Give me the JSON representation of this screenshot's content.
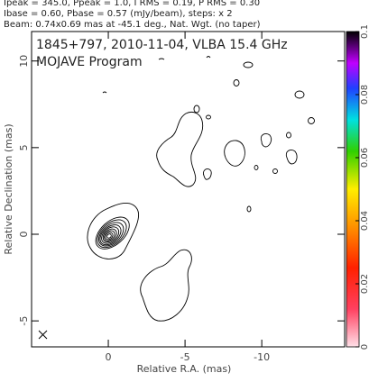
{
  "chart_data": {
    "type": "contour",
    "header": [
      "Ipeak = 345.0, Ppeak = 1.0, I RMS = 0.19, P RMS = 0.30",
      "Ibase = 0.60, Pbase = 0.57 (mJy/beam), steps: x 2",
      "Beam: 0.74x0.69 mas at -45.1 deg., Nat. Wgt. (no taper)"
    ],
    "title": "1845+797, 2010-11-04, VLBA 15.4 GHz",
    "subtitle": "MOJAVE Program",
    "xlabel": "Relative R.A. (mas)",
    "ylabel": "Relative Declination (mas)",
    "xlim": [
      5,
      -15.4
    ],
    "xticks": [
      0,
      -5,
      -10
    ],
    "ylim": [
      -6.5,
      11.7
    ],
    "yticks": [
      -5,
      0,
      5,
      10
    ],
    "colorbar": {
      "clim": [
        0,
        0.1
      ],
      "ticks": [
        0,
        0.02,
        0.04,
        0.06,
        0.08,
        0.1
      ]
    }
  }
}
